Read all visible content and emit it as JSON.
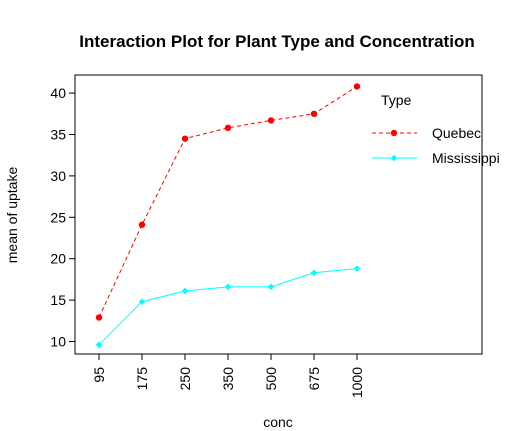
{
  "chart_data": {
    "type": "line",
    "title": "Interaction Plot for Plant Type and Concentration",
    "xlabel": "conc",
    "ylabel": "mean of  uptake",
    "categories": [
      "95",
      "175",
      "250",
      "350",
      "500",
      "675",
      "1000"
    ],
    "ylim": [
      8.5,
      42
    ],
    "yticks": [
      10,
      15,
      20,
      25,
      30,
      35,
      40
    ],
    "legend": {
      "title": "Type",
      "placement": "top-right"
    },
    "grid": false,
    "series": [
      {
        "name": "Quebec",
        "color": "#ff0000",
        "line_style": "dashed",
        "marker": "circle",
        "values": [
          12.9,
          24.1,
          34.5,
          35.8,
          36.7,
          37.5,
          40.8
        ]
      },
      {
        "name": "Mississippi",
        "color": "#00ffff",
        "line_style": "solid",
        "marker": "diamond",
        "values": [
          9.6,
          14.8,
          16.1,
          16.6,
          16.6,
          18.3,
          18.8
        ]
      }
    ]
  }
}
